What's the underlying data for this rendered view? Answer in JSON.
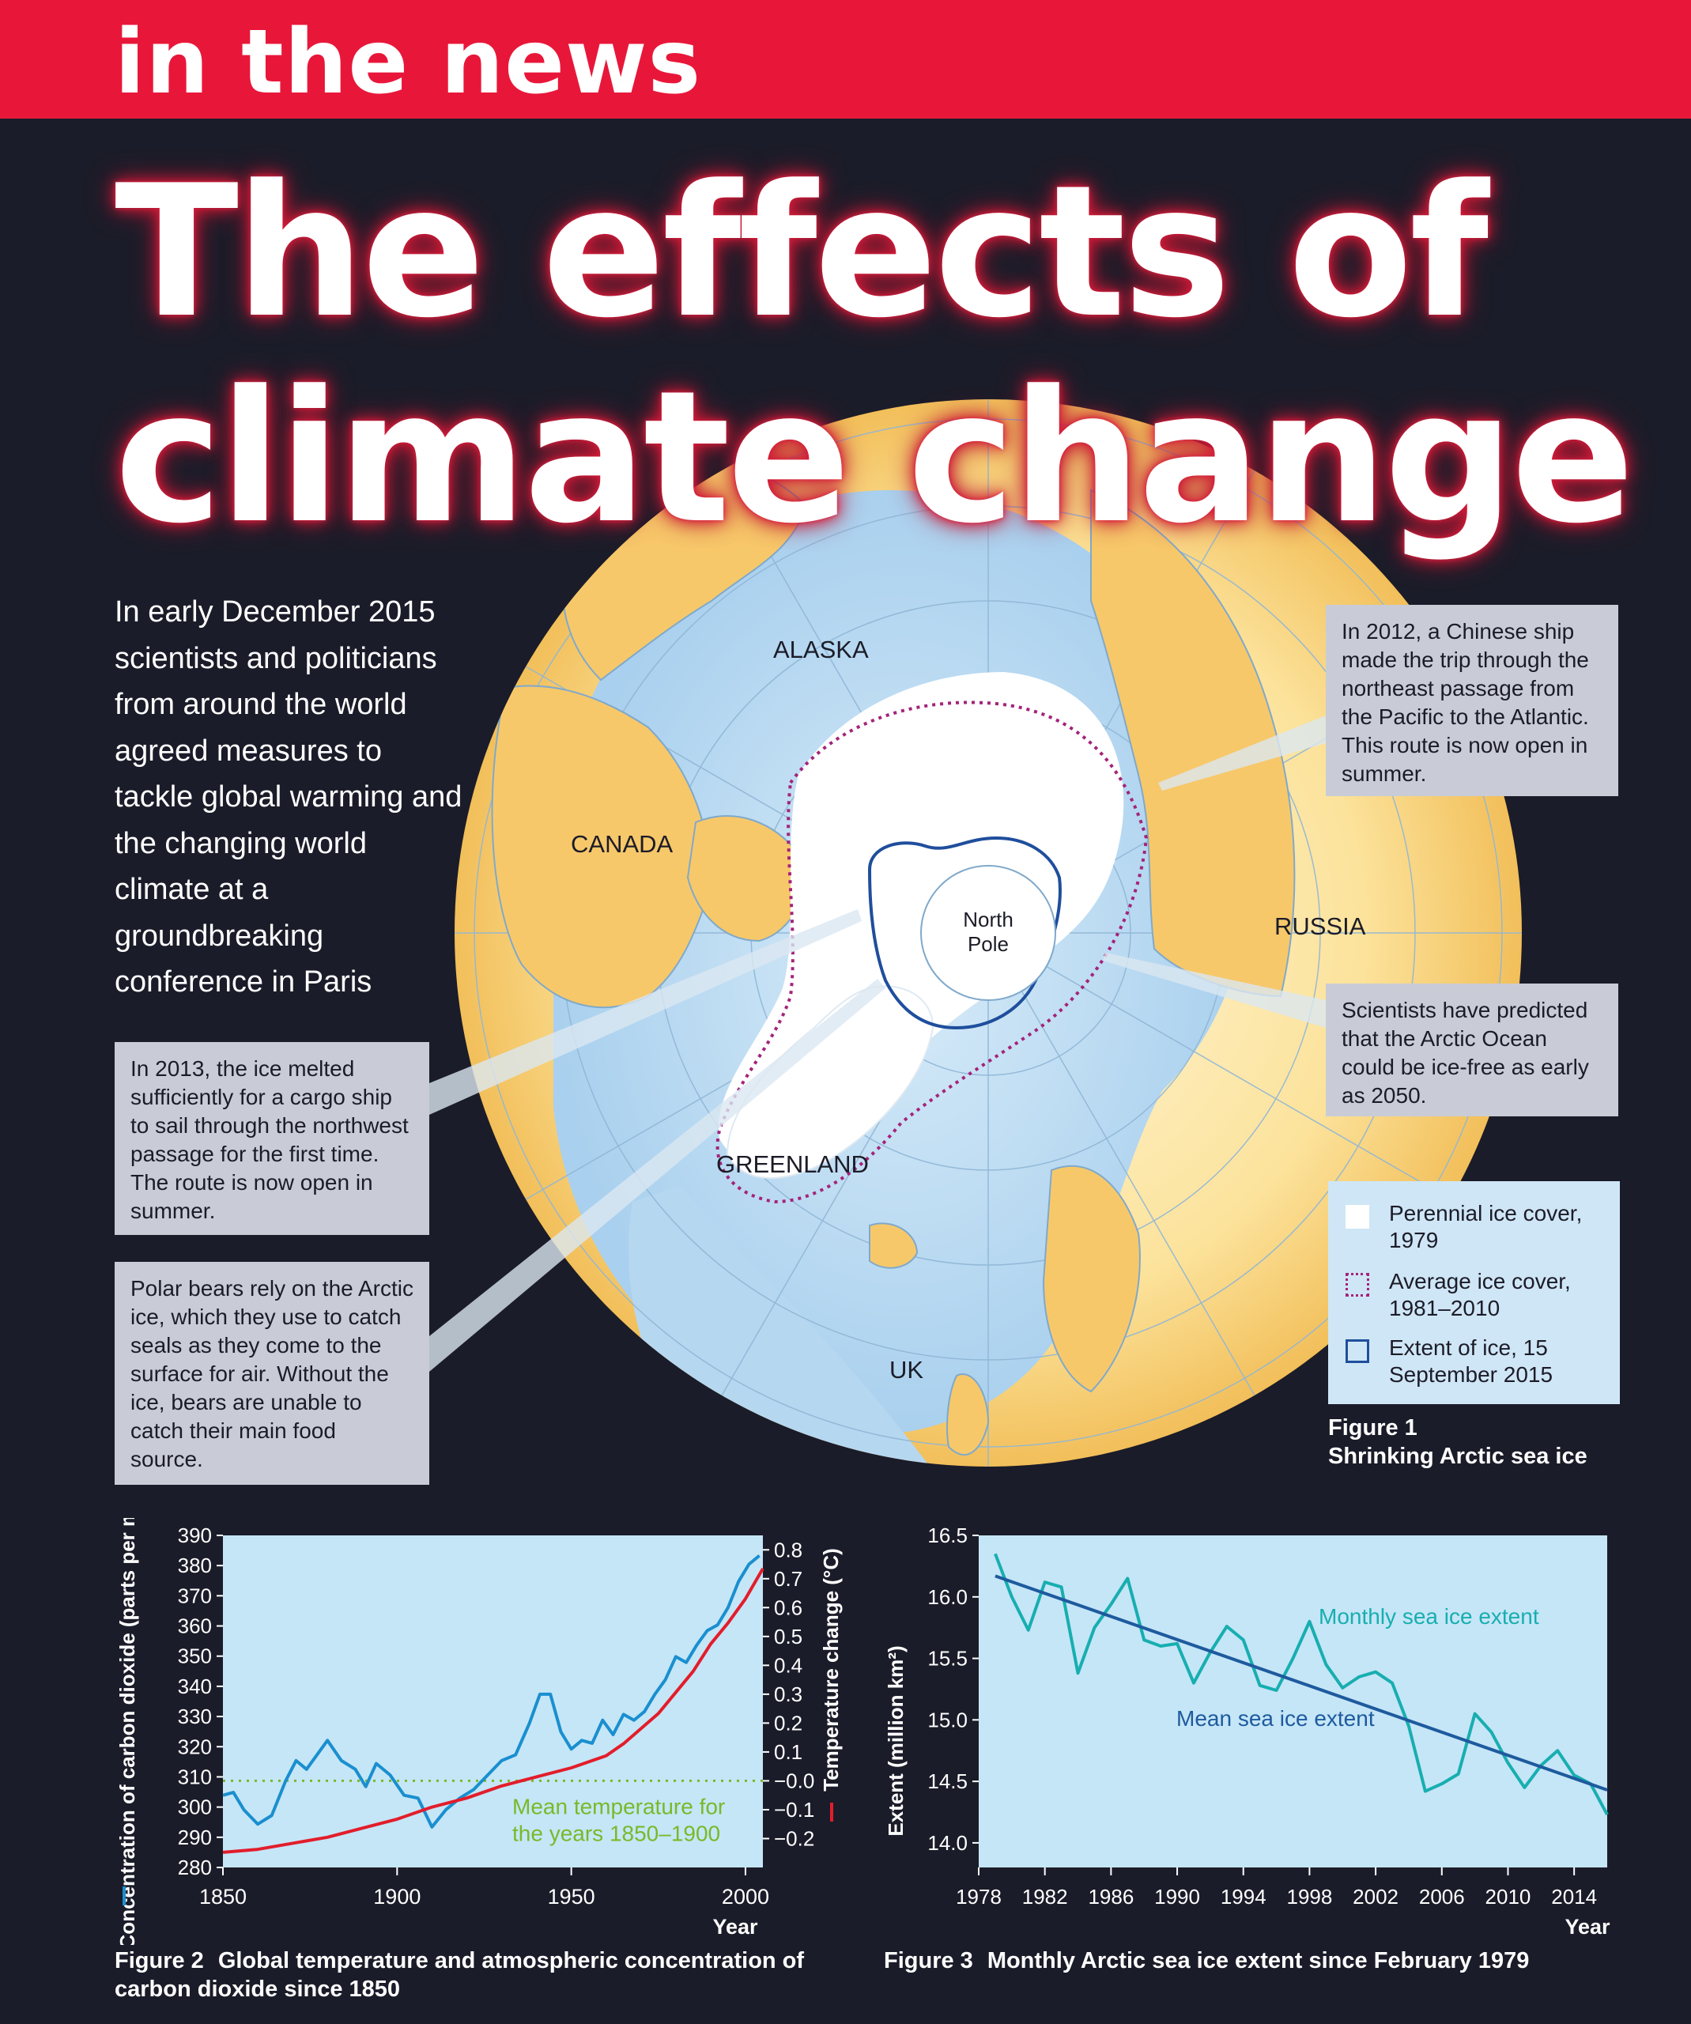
{
  "banner": {
    "text": "in the news"
  },
  "title": {
    "line1": "The effects of",
    "line2": "climate change"
  },
  "intro": "In early December 2015 scientists and politicians from around the world agreed measures to tackle global warming and the changing world climate at a groundbreaking conference in Paris",
  "map": {
    "labels": {
      "alaska": "ALASKA",
      "canada": "CANADA",
      "russia": "RUSSIA",
      "greenland": "GREENLAND",
      "uk": "UK",
      "north_pole_1": "North",
      "north_pole_2": "Pole"
    },
    "colors": {
      "land": "#f7c86a",
      "sea": "#b9daf2",
      "ice": "#ffffff",
      "avg_ice": "#a4237a",
      "extent_2015": "#1f4e9c"
    }
  },
  "notes": {
    "northwest": "In 2013, the ice melted sufficiently for a cargo ship to sail through the northwest passage for the first time. The route is now open in summer.",
    "polar_bears": "Polar bears rely on the Arctic ice, which they use to catch seals as they come to the surface for air. Without the ice, bears are unable to catch their main food source.",
    "northeast": "In 2012, a Chinese ship made the trip through the northeast passage from the Pacific to the Atlantic. This route is now open in summer.",
    "ice_free": "Scientists have predicted that the Arctic Ocean could be ice-free as early as 2050."
  },
  "legend": {
    "perennial": "Perennial ice cover, 1979",
    "average": "Average ice cover, 1981–2010",
    "extent": "Extent of ice, 15 September 2015"
  },
  "figure1": {
    "number": "Figure 1",
    "title": "Shrinking Arctic sea ice"
  },
  "figure2": {
    "number": "Figure 2",
    "title": "Global temperature and atmospheric concentration of carbon dioxide since 1850"
  },
  "figure3": {
    "number": "Figure 3",
    "title": "Monthly Arctic sea ice extent since February 1979"
  },
  "chart_data": [
    {
      "type": "line",
      "xlabel": "Year",
      "ylabel_left": "Concentration of carbon dioxide (parts per million)",
      "ylabel_right": "Temperature change (°C)",
      "xlim": [
        1850,
        2005
      ],
      "ylim_left": [
        280,
        390
      ],
      "ylim_right": [
        -0.3,
        0.85
      ],
      "x_ticks": [
        "1850",
        "1900",
        "1950",
        "2000"
      ],
      "y_ticks_left": [
        "280",
        "290",
        "300",
        "310",
        "320",
        "330",
        "340",
        "350",
        "360",
        "370",
        "380",
        "390"
      ],
      "y_ticks_right": [
        "−0.2",
        "−0.1",
        "−0.0",
        "0.1",
        "0.2",
        "0.3",
        "0.4",
        "0.5",
        "0.6",
        "0.7",
        "0.8"
      ],
      "annotation": "Mean temperature for the years 1850–1900",
      "colors": {
        "co2": "#e31d2b",
        "temperature": "#1a8fcf",
        "mean": "#79b928",
        "background": "#c5e6f7"
      },
      "series": [
        {
          "axis": "left",
          "x": [
            1850,
            1860,
            1870,
            1880,
            1890,
            1900,
            1910,
            1920,
            1930,
            1940,
            1950,
            1955,
            1960,
            1965,
            1970,
            1975,
            1980,
            1985,
            1990,
            1995,
            2000,
            2005
          ],
          "values": [
            285,
            286,
            288,
            290,
            293,
            296,
            300,
            303,
            307,
            310,
            313,
            315,
            317,
            321,
            326,
            331,
            338,
            345,
            354,
            361,
            369,
            379
          ]
        },
        {
          "axis": "right",
          "x": [
            1850,
            1853,
            1856,
            1860,
            1864,
            1868,
            1871,
            1874,
            1877,
            1880,
            1884,
            1888,
            1891,
            1894,
            1898,
            1902,
            1906,
            1910,
            1914,
            1918,
            1922,
            1926,
            1930,
            1934,
            1938,
            1941,
            1944,
            1947,
            1950,
            1953,
            1956,
            1959,
            1962,
            1965,
            1968,
            1971,
            1974,
            1977,
            1980,
            1983,
            1986,
            1989,
            1992,
            1995,
            1998,
            2001,
            2004
          ],
          "values": [
            -0.05,
            -0.04,
            -0.1,
            -0.15,
            -0.12,
            0.0,
            0.07,
            0.04,
            0.09,
            0.14,
            0.07,
            0.04,
            -0.02,
            0.06,
            0.02,
            -0.05,
            -0.06,
            -0.16,
            -0.1,
            -0.06,
            -0.03,
            0.02,
            0.07,
            0.09,
            0.2,
            0.3,
            0.3,
            0.17,
            0.11,
            0.14,
            0.13,
            0.21,
            0.16,
            0.23,
            0.21,
            0.24,
            0.3,
            0.35,
            0.43,
            0.41,
            0.47,
            0.52,
            0.54,
            0.6,
            0.69,
            0.75,
            0.78
          ]
        }
      ]
    },
    {
      "type": "line",
      "xlabel": "Year",
      "ylabel": "Extent (million km²)",
      "xlim": [
        1978,
        2016
      ],
      "ylim": [
        13.8,
        16.5
      ],
      "x_ticks": [
        "1978",
        "1982",
        "1986",
        "1990",
        "1994",
        "1998",
        "2002",
        "2006",
        "2010",
        "2014"
      ],
      "y_ticks": [
        "14.0",
        "14.5",
        "15.0",
        "15.5",
        "16.0",
        "16.5"
      ],
      "colors": {
        "monthly": "#18aeb0",
        "mean": "#1e5a9e",
        "background": "#c5e6f7"
      },
      "series": [
        {
          "name": "Monthly sea ice extent",
          "x": [
            1979,
            1980,
            1981,
            1982,
            1983,
            1984,
            1985,
            1986,
            1987,
            1988,
            1989,
            1990,
            1991,
            1992,
            1993,
            1994,
            1995,
            1996,
            1997,
            1998,
            1999,
            2000,
            2001,
            2002,
            2003,
            2004,
            2005,
            2006,
            2007,
            2008,
            2009,
            2010,
            2011,
            2012,
            2013,
            2014,
            2015,
            2016
          ],
          "values": [
            16.35,
            16.0,
            15.73,
            16.12,
            16.08,
            15.38,
            15.75,
            15.94,
            16.15,
            15.65,
            15.6,
            15.62,
            15.3,
            15.55,
            15.76,
            15.65,
            15.28,
            15.24,
            15.5,
            15.8,
            15.45,
            15.26,
            15.35,
            15.39,
            15.3,
            14.95,
            14.42,
            14.48,
            14.56,
            15.05,
            14.9,
            14.65,
            14.45,
            14.63,
            14.75,
            14.55,
            14.48,
            14.23
          ]
        },
        {
          "name": "Mean sea ice extent",
          "x": [
            1979,
            2016
          ],
          "values": [
            16.17,
            14.43
          ]
        }
      ]
    }
  ]
}
